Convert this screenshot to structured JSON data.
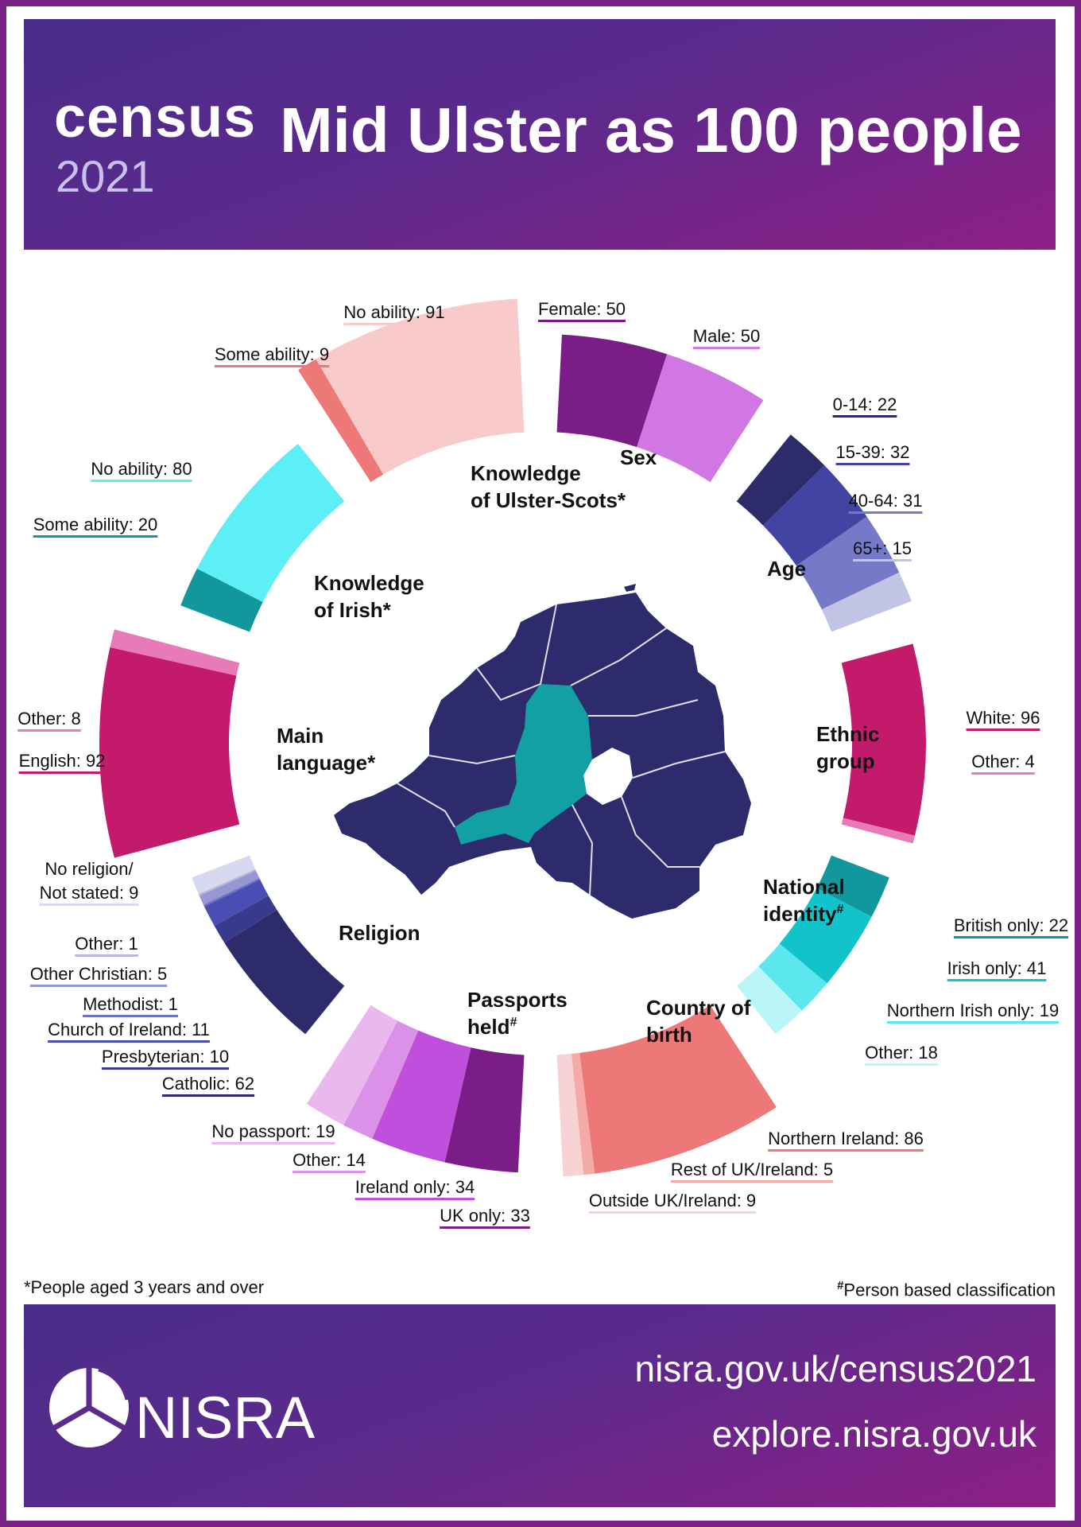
{
  "header": {
    "logo_word": "census",
    "logo_year": "2021",
    "title": "Mid Ulster as 100 people"
  },
  "footnotes": {
    "left": "*People aged 3 years and over",
    "right_mark": "#",
    "right": "Person based classification"
  },
  "footer": {
    "logo": "NISRA",
    "url1": "nisra.gov.uk/census2021",
    "url2": "explore.nisra.gov.uk"
  },
  "map": {
    "highlight_color": "#13a0a4",
    "base_color": "#2d2b6b"
  },
  "chart_data": {
    "type": "pie",
    "title": "Mid Ulster as 100 people",
    "categories": [
      {
        "name": "Sex",
        "label_lines": [
          "Sex"
        ],
        "segments": [
          {
            "label": "Female: 50",
            "value": 50,
            "color": "#7b1d86"
          },
          {
            "label": "Male: 50",
            "value": 50,
            "color": "#d077e3"
          }
        ]
      },
      {
        "name": "Age",
        "label_lines": [
          "Age"
        ],
        "segments": [
          {
            "label": "0-14: 22",
            "value": 22,
            "color": "#2e2b6b"
          },
          {
            "label": "15-39: 32",
            "value": 32,
            "color": "#4244a3"
          },
          {
            "label": "40-64: 31",
            "value": 31,
            "color": "#7579c8"
          },
          {
            "label": "65+: 15",
            "value": 15,
            "color": "#c2c4e6"
          }
        ]
      },
      {
        "name": "Ethnic group",
        "label_lines": [
          "Ethnic",
          "group"
        ],
        "segments": [
          {
            "label": "White: 96",
            "value": 96,
            "color": "#c41a6c"
          },
          {
            "label": "Other: 4",
            "value": 4,
            "color": "#e87ab8"
          }
        ]
      },
      {
        "name": "National identity",
        "label_lines": [
          "National",
          "identity#"
        ],
        "segments": [
          {
            "label": "British only: 22",
            "value": 22,
            "color": "#12979c"
          },
          {
            "label": "Irish only: 41",
            "value": 41,
            "color": "#11c4cc"
          },
          {
            "label": "Northern Irish only: 19",
            "value": 19,
            "color": "#5ce7ef"
          },
          {
            "label": "Other: 18",
            "value": 18,
            "color": "#baf5f8"
          }
        ]
      },
      {
        "name": "Country of birth",
        "label_lines": [
          "Country of",
          "birth"
        ],
        "segments": [
          {
            "label": "Northern Ireland: 86",
            "value": 86,
            "color": "#ee7777"
          },
          {
            "label": "Rest of UK/Ireland: 5",
            "value": 5,
            "color": "#f5aaaa"
          },
          {
            "label": "Outside UK/Ireland: 9",
            "value": 9,
            "color": "#f8d2d2"
          }
        ]
      },
      {
        "name": "Passports held",
        "label_lines": [
          "Passports",
          "held#"
        ],
        "segments": [
          {
            "label": "UK only: 33",
            "value": 33,
            "color": "#7b1d86"
          },
          {
            "label": "Ireland only: 34",
            "value": 34,
            "color": "#c14fdd"
          },
          {
            "label": "Other: 14",
            "value": 14,
            "color": "#db91e8"
          },
          {
            "label": "No passport: 19",
            "value": 19,
            "color": "#e8b8ef"
          }
        ]
      },
      {
        "name": "Religion",
        "label_lines": [
          "Religion"
        ],
        "segments": [
          {
            "label": "Catholic: 62",
            "value": 62,
            "color": "#2e2b6b"
          },
          {
            "label": "Presbyterian: 10",
            "value": 10,
            "color": "#383a8e"
          },
          {
            "label": "Church of Ireland: 11",
            "value": 11,
            "color": "#4a4db3"
          },
          {
            "label": "Methodist: 1",
            "value": 1,
            "color": "#6d70c4"
          },
          {
            "label": "Other Christian: 5",
            "value": 5,
            "color": "#9698d4"
          },
          {
            "label": "Other: 1",
            "value": 1,
            "color": "#b7b8e0"
          },
          {
            "label": "No religion/ Not stated: 9",
            "value": 9,
            "color": "#d8d9f0"
          }
        ]
      },
      {
        "name": "Main language",
        "label_lines": [
          "Main",
          "language*"
        ],
        "segments": [
          {
            "label": "English: 92",
            "value": 92,
            "color": "#c41a6c"
          },
          {
            "label": "Other: 8",
            "value": 8,
            "color": "#e87ab8"
          }
        ]
      },
      {
        "name": "Knowledge of Irish",
        "label_lines": [
          "Knowledge",
          "of Irish*"
        ],
        "segments": [
          {
            "label": "Some ability: 20",
            "value": 20,
            "color": "#11979c"
          },
          {
            "label": "No ability: 80",
            "value": 80,
            "color": "#5ceff5"
          }
        ]
      },
      {
        "name": "Knowledge of Ulster-Scots",
        "label_lines": [
          "Knowledge",
          "of Ulster-Scots*"
        ],
        "segments": [
          {
            "label": "Some ability: 9",
            "value": 9,
            "color": "#ee7777"
          },
          {
            "label": "No ability: 91",
            "value": 91,
            "color": "#f8caca"
          }
        ]
      }
    ]
  }
}
